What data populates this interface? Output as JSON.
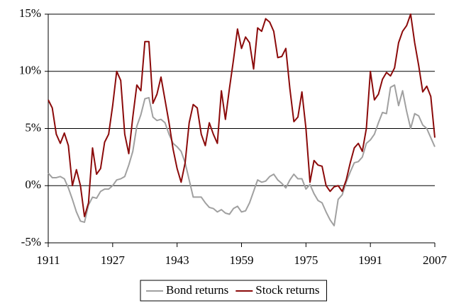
{
  "chart_data": {
    "type": "line",
    "x": [
      1911,
      1912,
      1913,
      1914,
      1915,
      1916,
      1917,
      1918,
      1919,
      1920,
      1921,
      1922,
      1923,
      1924,
      1925,
      1926,
      1927,
      1928,
      1929,
      1930,
      1931,
      1932,
      1933,
      1934,
      1935,
      1936,
      1937,
      1938,
      1939,
      1940,
      1941,
      1942,
      1943,
      1944,
      1945,
      1946,
      1947,
      1948,
      1949,
      1950,
      1951,
      1952,
      1953,
      1954,
      1955,
      1956,
      1957,
      1958,
      1959,
      1960,
      1961,
      1962,
      1963,
      1964,
      1965,
      1966,
      1967,
      1968,
      1969,
      1970,
      1971,
      1972,
      1973,
      1974,
      1975,
      1976,
      1977,
      1978,
      1979,
      1980,
      1981,
      1982,
      1983,
      1984,
      1985,
      1986,
      1987,
      1988,
      1989,
      1990,
      1991,
      1992,
      1993,
      1994,
      1995,
      1996,
      1997,
      1998,
      1999,
      2000,
      2001,
      2002,
      2003,
      2004,
      2005,
      2006,
      2007
    ],
    "series": [
      {
        "name": "Bond returns",
        "color": "#a0a0a0",
        "values": [
          1.1,
          0.7,
          0.7,
          0.8,
          0.6,
          -0.2,
          -1.2,
          -2.3,
          -3.1,
          -3.2,
          -1.7,
          -1.0,
          -1.1,
          -0.5,
          -0.3,
          -0.3,
          0.0,
          0.5,
          0.6,
          0.8,
          1.8,
          3.0,
          5.2,
          6.2,
          7.6,
          7.7,
          6.0,
          5.7,
          5.8,
          5.5,
          4.5,
          3.7,
          3.4,
          3.0,
          2.0,
          0.5,
          -1.0,
          -1.0,
          -1.0,
          -1.5,
          -1.9,
          -2.0,
          -2.3,
          -2.1,
          -2.4,
          -2.5,
          -2.0,
          -1.8,
          -2.3,
          -2.2,
          -1.5,
          -0.5,
          0.5,
          0.3,
          0.4,
          0.8,
          1.0,
          0.5,
          0.2,
          -0.2,
          0.5,
          1.0,
          0.6,
          0.6,
          -0.3,
          0.1,
          -0.7,
          -1.3,
          -1.5,
          -2.3,
          -3.0,
          -3.5,
          -1.2,
          -0.8,
          0.3,
          1.2,
          2.0,
          2.1,
          2.5,
          3.7,
          4.0,
          4.5,
          5.5,
          6.4,
          6.3,
          8.6,
          8.8,
          7.0,
          8.3,
          6.5,
          5.0,
          6.3,
          6.1,
          5.3,
          5.0,
          4.2,
          3.4
        ]
      },
      {
        "name": "Stock returns",
        "color": "#8b0a0a",
        "values": [
          7.5,
          6.8,
          4.5,
          3.7,
          4.6,
          3.5,
          0.0,
          1.4,
          0.0,
          -2.7,
          -1.5,
          3.3,
          1.0,
          1.5,
          3.8,
          4.5,
          7.0,
          10.0,
          9.2,
          4.5,
          2.8,
          6.0,
          8.8,
          8.3,
          12.6,
          12.6,
          7.2,
          8.0,
          9.5,
          7.5,
          5.5,
          3.2,
          1.5,
          0.3,
          2.0,
          5.5,
          7.1,
          6.8,
          4.5,
          3.5,
          5.5,
          4.5,
          3.7,
          8.3,
          5.8,
          8.5,
          11.0,
          13.7,
          12.0,
          13.0,
          12.5,
          10.2,
          13.8,
          13.5,
          14.6,
          14.3,
          13.5,
          11.2,
          11.3,
          12.0,
          8.5,
          5.6,
          6.0,
          8.2,
          5.0,
          0.3,
          2.2,
          1.8,
          1.7,
          0.0,
          -0.5,
          -0.1,
          0.0,
          -0.5,
          0.5,
          2.0,
          3.3,
          3.7,
          3.0,
          5.0,
          10.0,
          7.5,
          8.0,
          9.3,
          9.9,
          9.6,
          10.3,
          12.5,
          13.5,
          14.0,
          15.0,
          12.5,
          10.5,
          8.2,
          8.7,
          7.8,
          4.2
        ]
      }
    ],
    "xlim": [
      1911,
      2007
    ],
    "xticks": [
      1911,
      1927,
      1943,
      1959,
      1975,
      1991,
      2007
    ],
    "ylim": [
      -5,
      15
    ],
    "yticks": [
      {
        "value": -5,
        "label": "-5%"
      },
      {
        "value": 0,
        "label": "0%"
      },
      {
        "value": 5,
        "label": "5%"
      },
      {
        "value": 10,
        "label": "10%"
      },
      {
        "value": 15,
        "label": "15%"
      }
    ],
    "grid": true,
    "legend": "bottom"
  }
}
